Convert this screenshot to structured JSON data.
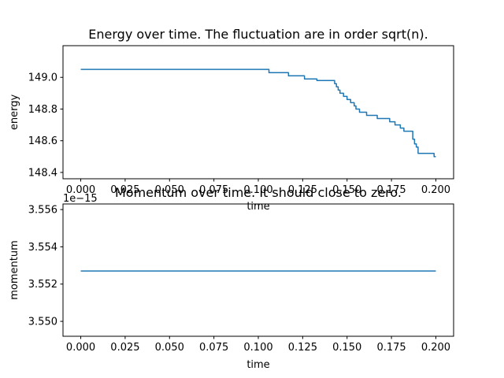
{
  "chart_data": [
    {
      "type": "line",
      "title": "Energy over time. The fluctuation are in order sqrt(n).",
      "xlabel": "time",
      "ylabel": "energy",
      "xlim": [
        -0.01,
        0.21
      ],
      "ylim": [
        148.36,
        149.2
      ],
      "xticks": [
        0.0,
        0.025,
        0.05,
        0.075,
        0.1,
        0.125,
        0.15,
        0.175,
        0.2
      ],
      "xtick_labels": [
        "0.000",
        "0.025",
        "0.050",
        "0.075",
        "0.100",
        "0.125",
        "0.150",
        "0.175",
        "0.200"
      ],
      "yticks": [
        148.4,
        148.6,
        148.8,
        149.0
      ],
      "ytick_labels": [
        "148.4",
        "148.6",
        "148.8",
        "149.0"
      ],
      "grid": false,
      "color": "#1f77b4",
      "series": [
        {
          "x": [
            0.0,
            0.106,
            0.106,
            0.117,
            0.117,
            0.126,
            0.126,
            0.133,
            0.133,
            0.143,
            0.143,
            0.144,
            0.144,
            0.145,
            0.145,
            0.146,
            0.146,
            0.148,
            0.148,
            0.15,
            0.15,
            0.152,
            0.152,
            0.154,
            0.154,
            0.155,
            0.155,
            0.157,
            0.157,
            0.161,
            0.161,
            0.167,
            0.167,
            0.174,
            0.174,
            0.177,
            0.177,
            0.18,
            0.18,
            0.182,
            0.182,
            0.187,
            0.187,
            0.188,
            0.188,
            0.189,
            0.189,
            0.19,
            0.19,
            0.199,
            0.199,
            0.2
          ],
          "y": [
            149.05,
            149.05,
            149.03,
            149.03,
            149.01,
            149.01,
            148.99,
            148.99,
            148.98,
            148.98,
            148.96,
            148.96,
            148.94,
            148.94,
            148.92,
            148.92,
            148.9,
            148.9,
            148.88,
            148.88,
            148.86,
            148.86,
            148.84,
            148.84,
            148.82,
            148.82,
            148.8,
            148.8,
            148.78,
            148.78,
            148.76,
            148.76,
            148.74,
            148.74,
            148.72,
            148.72,
            148.7,
            148.7,
            148.68,
            148.68,
            148.66,
            148.66,
            148.61,
            148.61,
            148.58,
            148.58,
            148.56,
            148.56,
            148.52,
            148.52,
            148.5,
            148.5
          ]
        }
      ]
    },
    {
      "type": "line",
      "title": "Momentum over time. It should close to zero.",
      "xlabel": "time",
      "ylabel": "momentum",
      "offset_text": "1e−15",
      "xlim": [
        -0.01,
        0.21
      ],
      "ylim": [
        3.5492,
        3.5563
      ],
      "xticks": [
        0.0,
        0.025,
        0.05,
        0.075,
        0.1,
        0.125,
        0.15,
        0.175,
        0.2
      ],
      "xtick_labels": [
        "0.000",
        "0.025",
        "0.050",
        "0.075",
        "0.100",
        "0.125",
        "0.150",
        "0.175",
        "0.200"
      ],
      "yticks": [
        3.55,
        3.552,
        3.554,
        3.556
      ],
      "ytick_labels": [
        "3.550",
        "3.552",
        "3.554",
        "3.556"
      ],
      "grid": false,
      "color": "#1f77b4",
      "series": [
        {
          "x": [
            0.0,
            0.2
          ],
          "y": [
            3.5527,
            3.5527
          ]
        }
      ]
    }
  ]
}
